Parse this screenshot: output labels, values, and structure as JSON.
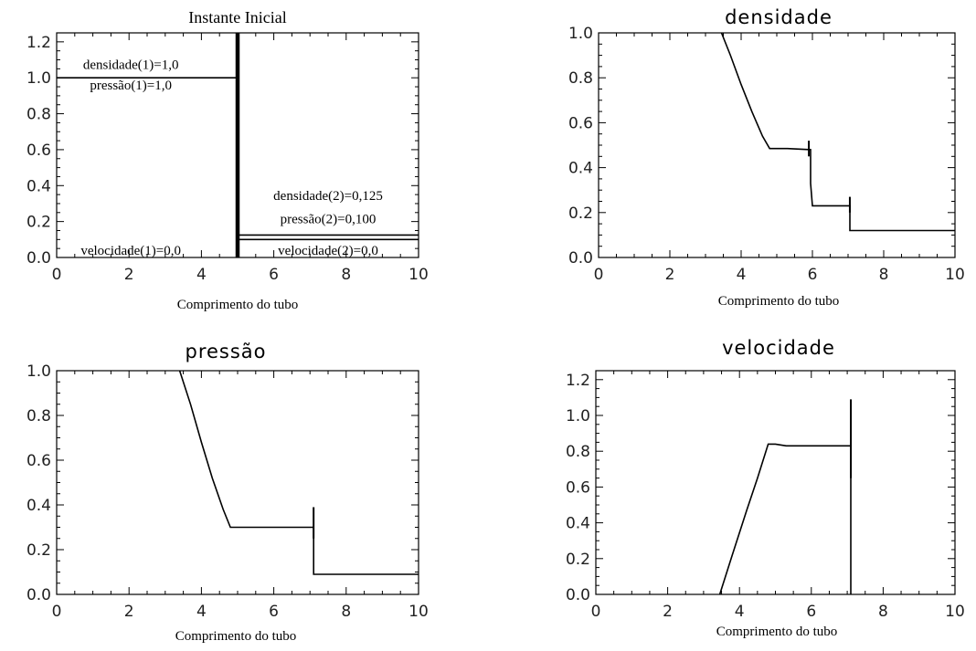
{
  "chart_data": [
    {
      "type": "line",
      "title": "Instante Inicial",
      "xlabel": "Comprimento do tubo",
      "ylabel": "",
      "xlim": [
        0,
        10
      ],
      "ylim": [
        0,
        1.25
      ],
      "xticks": [
        "0",
        "2",
        "4",
        "6",
        "8",
        "10"
      ],
      "yticks": [
        "0.0",
        "0.2",
        "0.4",
        "0.6",
        "0.8",
        "1.0",
        "1.2"
      ],
      "series": [
        {
          "x": [
            0,
            5,
            5,
            5,
            10
          ],
          "y": [
            1.0,
            1.0,
            0.125,
            0.1,
            0.1
          ]
        },
        {
          "x": [
            5,
            10
          ],
          "y": [
            0.125,
            0.125
          ]
        },
        {
          "x": [
            5,
            5
          ],
          "y": [
            0,
            1.25
          ]
        }
      ],
      "annotations": [
        {
          "text": "densidade(1)=1,0",
          "x": 2.05,
          "y": 1.05
        },
        {
          "text": "pressão(1)=1,0",
          "x": 2.05,
          "y": 0.935
        },
        {
          "text": "densidade(2)=0,125",
          "x": 7.5,
          "y": 0.32
        },
        {
          "text": "pressão(2)=0,100",
          "x": 7.5,
          "y": 0.19
        },
        {
          "text": "velocidade(1)=0,0",
          "x": 2.05,
          "y": 0.015
        },
        {
          "text": "velocidade(2)=0,0",
          "x": 7.5,
          "y": 0.015
        }
      ]
    },
    {
      "type": "line",
      "title": "densidade",
      "xlabel": "Comprimento do tubo",
      "ylabel": "",
      "xlim": [
        0,
        10
      ],
      "ylim": [
        0,
        1.0
      ],
      "xticks": [
        "0",
        "2",
        "4",
        "6",
        "8",
        "10"
      ],
      "yticks": [
        "0.0",
        "0.2",
        "0.4",
        "0.6",
        "0.8",
        "1.0"
      ],
      "series": [
        {
          "x": [
            3.45,
            3.7,
            4.0,
            4.3,
            4.6,
            4.8,
            5.0,
            5.3,
            5.95,
            5.95,
            6.0,
            7.05,
            7.05,
            10
          ],
          "y": [
            1.0,
            0.9,
            0.77,
            0.65,
            0.54,
            0.485,
            0.485,
            0.485,
            0.48,
            0.33,
            0.23,
            0.23,
            0.12,
            0.12
          ]
        }
      ],
      "spikes": [
        {
          "x": 5.9,
          "y1": 0.45,
          "y2": 0.52
        },
        {
          "x": 7.05,
          "y1": 0.2,
          "y2": 0.27
        }
      ]
    },
    {
      "type": "line",
      "title": "pressão",
      "xlabel": "Comprimento do tubo",
      "ylabel": "",
      "xlim": [
        0,
        10
      ],
      "ylim": [
        0,
        1.0
      ],
      "xticks": [
        "0",
        "2",
        "4",
        "6",
        "8",
        "10"
      ],
      "yticks": [
        "0.0",
        "0.2",
        "0.4",
        "0.6",
        "0.8",
        "1.0"
      ],
      "series": [
        {
          "x": [
            3.4,
            3.7,
            4.0,
            4.3,
            4.6,
            4.8,
            5.0,
            5.3,
            7.1,
            7.1,
            10
          ],
          "y": [
            1.0,
            0.85,
            0.68,
            0.52,
            0.38,
            0.3,
            0.3,
            0.3,
            0.3,
            0.09,
            0.09
          ]
        }
      ],
      "spikes": [
        {
          "x": 7.1,
          "y1": 0.25,
          "y2": 0.39
        }
      ]
    },
    {
      "type": "line",
      "title": "velocidade",
      "xlabel": "Comprimento do tubo",
      "ylabel": "",
      "xlim": [
        0,
        10
      ],
      "ylim": [
        0,
        1.25
      ],
      "xticks": [
        "0",
        "2",
        "4",
        "6",
        "8",
        "10"
      ],
      "yticks": [
        "0.0",
        "0.2",
        "0.4",
        "0.6",
        "0.8",
        "1.0",
        "1.2"
      ],
      "series": [
        {
          "x": [
            3.45,
            3.8,
            4.2,
            4.5,
            4.8,
            5.0,
            5.3,
            7.1,
            7.1
          ],
          "y": [
            0.0,
            0.22,
            0.47,
            0.65,
            0.84,
            0.84,
            0.83,
            0.83,
            0.0
          ]
        }
      ],
      "spikes": [
        {
          "x": 7.1,
          "y1": 0.65,
          "y2": 1.09
        }
      ]
    }
  ]
}
